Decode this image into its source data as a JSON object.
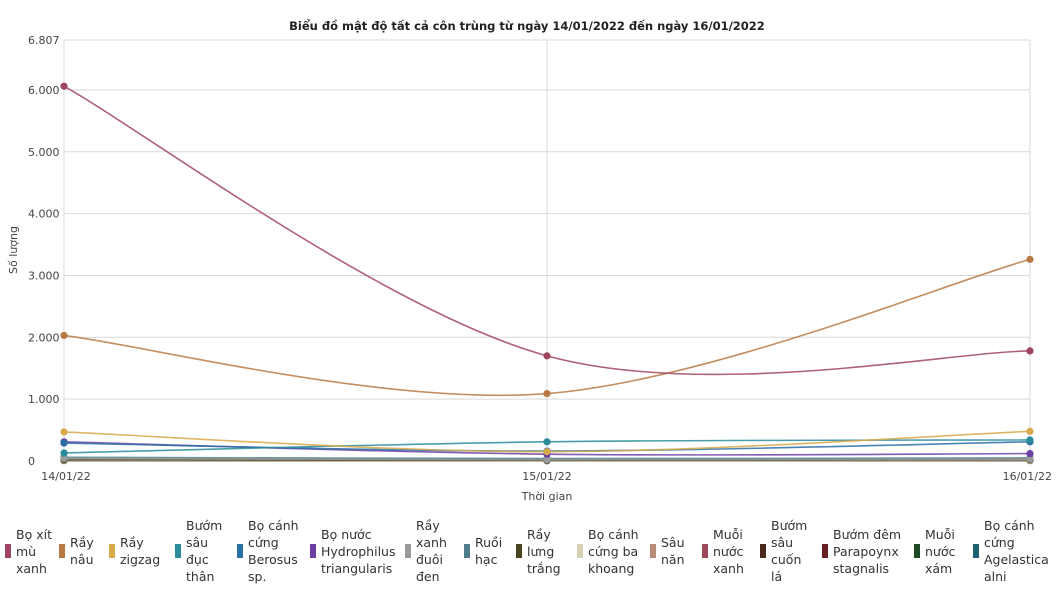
{
  "chart_data": {
    "type": "line",
    "title": "Biểu đồ mật độ tất cả côn trùng từ ngày 14/01/2022 đến ngày 16/01/2022",
    "xlabel": "Thời gian",
    "ylabel": "Số lượng",
    "categories": [
      "14/01/22",
      "15/01/22",
      "16/01/22"
    ],
    "ylim": [
      0,
      6807
    ],
    "yticks": [
      "0",
      "1.000",
      "2.000",
      "3.000",
      "4.000",
      "5.000",
      "6.000",
      "6.807"
    ],
    "grid": true,
    "legend_position": "bottom",
    "series": [
      {
        "name": "Bọ xít\nmù\nxanh",
        "color": "#a0455f",
        "values": [
          6060,
          1700,
          1780
        ]
      },
      {
        "name": "Rầy\nnâu",
        "color": "#b87a45",
        "values": [
          2030,
          1090,
          3260
        ]
      },
      {
        "name": "Rầy\nzigzag",
        "color": "#d6a94a",
        "values": [
          470,
          150,
          480
        ]
      },
      {
        "name": "Bướm\nsâu\nđục\nthân",
        "color": "#2b8c9e",
        "values": [
          130,
          310,
          340
        ]
      },
      {
        "name": "Bọ cánh\ncứng\nBerosus\nsp.",
        "color": "#2a6fa3",
        "values": [
          290,
          160,
          310
        ]
      },
      {
        "name": "Bọ nước\nHydrophilus\ntriangularis",
        "color": "#6c3fa6",
        "values": [
          310,
          110,
          120
        ]
      },
      {
        "name": "Rầy\nxanh\nđuôi\nđen",
        "color": "#9a9a9a",
        "values": [
          40,
          20,
          30
        ]
      },
      {
        "name": "Ruồi\nhạc",
        "color": "#4f7f8a",
        "values": [
          60,
          40,
          50
        ]
      },
      {
        "name": "Rầy\nlưng\ntrắng",
        "color": "#4a4520",
        "values": [
          20,
          10,
          20
        ]
      },
      {
        "name": "Bọ cánh\ncứng ba\nkhoang",
        "color": "#d8d2b5",
        "values": [
          15,
          10,
          15
        ]
      },
      {
        "name": "Sâu\nnăn",
        "color": "#b88a78",
        "values": [
          10,
          8,
          10
        ]
      },
      {
        "name": "Muỗi\nnước\nxanh",
        "color": "#9c4a5a",
        "values": [
          25,
          15,
          20
        ]
      },
      {
        "name": "Bướm\nsâu\ncuốn\nlá",
        "color": "#4a2a1a",
        "values": [
          30,
          20,
          25
        ]
      },
      {
        "name": "Bướm đêm\nParapoynx\nstagnalis",
        "color": "#6a1f24",
        "values": [
          12,
          8,
          10
        ]
      },
      {
        "name": "Muỗi\nnước\nxám",
        "color": "#1f4a26",
        "values": [
          8,
          5,
          8
        ]
      },
      {
        "name": "Bọ cánh\ncứng\nAgelastica\nalni",
        "color": "#1f6070",
        "values": [
          5,
          4,
          6
        ]
      }
    ]
  }
}
